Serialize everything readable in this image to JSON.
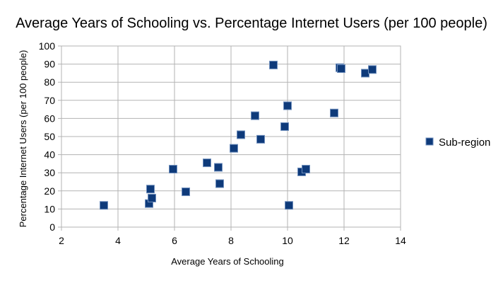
{
  "chart_data": {
    "type": "scatter",
    "title": "Average Years of Schooling vs. Percentage Internet Users (per 100 people)",
    "xlabel": "Average Years of Schooling",
    "ylabel": "Percentage Internet Users (per 100 people)",
    "xlim": [
      2,
      14
    ],
    "ylim": [
      0,
      100
    ],
    "xticks": [
      2,
      4,
      6,
      8,
      10,
      12,
      14
    ],
    "yticks": [
      0,
      10,
      20,
      30,
      40,
      50,
      60,
      70,
      80,
      90,
      100
    ],
    "grid": true,
    "legend": "right",
    "series": [
      {
        "name": "Sub-region",
        "color": "#0e3a7a",
        "points": [
          {
            "x": 3.5,
            "y": 12
          },
          {
            "x": 5.1,
            "y": 13
          },
          {
            "x": 5.2,
            "y": 16
          },
          {
            "x": 5.15,
            "y": 21
          },
          {
            "x": 5.95,
            "y": 32
          },
          {
            "x": 6.4,
            "y": 19.5
          },
          {
            "x": 7.15,
            "y": 35.5
          },
          {
            "x": 7.55,
            "y": 33
          },
          {
            "x": 7.6,
            "y": 24
          },
          {
            "x": 8.1,
            "y": 43.5
          },
          {
            "x": 8.35,
            "y": 51
          },
          {
            "x": 8.85,
            "y": 61.5
          },
          {
            "x": 9.05,
            "y": 48.5
          },
          {
            "x": 9.5,
            "y": 89.5
          },
          {
            "x": 9.9,
            "y": 55.5
          },
          {
            "x": 10.0,
            "y": 67
          },
          {
            "x": 10.05,
            "y": 12
          },
          {
            "x": 10.5,
            "y": 30.5
          },
          {
            "x": 10.65,
            "y": 32
          },
          {
            "x": 11.65,
            "y": 63
          },
          {
            "x": 11.85,
            "y": 88
          },
          {
            "x": 11.9,
            "y": 87.5
          },
          {
            "x": 12.75,
            "y": 85
          },
          {
            "x": 13.0,
            "y": 87
          }
        ]
      }
    ]
  }
}
